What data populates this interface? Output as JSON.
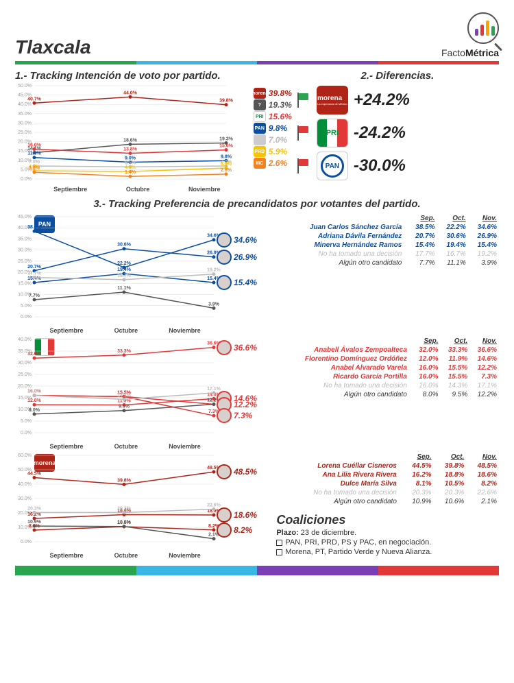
{
  "title": "Tlaxcala",
  "brand": {
    "name_a": "Facto",
    "name_b": "Métrica",
    "bar_colors": [
      "#7b3fb5",
      "#e23838",
      "#f7a500",
      "#2aa44f"
    ]
  },
  "stripe_colors": [
    "#2aa44f",
    "#3bb6e4",
    "#7b3fb5",
    "#e23838"
  ],
  "sec1_title": "1.- Tracking Intención de voto por partido.",
  "sec2_title": "2.- Diferencias.",
  "sec3_title": "3.- Tracking Preferencia de precandidatos por votantes del partido.",
  "months": [
    "Septiembre",
    "Octubre",
    "Noviembre"
  ],
  "chart1": {
    "ymax": 50,
    "ystep": 5,
    "series": [
      {
        "name": "morena",
        "color": "#b02418",
        "vals": [
          40.7,
          44.0,
          39.8
        ],
        "badge_bg": "#b02418",
        "badge_txt": "morena",
        "end": "39.8%"
      },
      {
        "name": "unknown",
        "color": "#555",
        "vals": [
          14.1,
          18.6,
          19.3
        ],
        "badge_bg": "#555",
        "badge_txt": "?",
        "end": "19.3%"
      },
      {
        "name": "pri",
        "color": "#e23838",
        "vals": [
          16.0,
          13.8,
          15.6
        ],
        "badge_bg": "#fff",
        "badge_txt": "PRI",
        "end": "15.6%",
        "tri": true
      },
      {
        "name": "pan",
        "color": "#0a4ea2",
        "vals": [
          11.5,
          9.0,
          9.8
        ],
        "badge_bg": "#0a4ea2",
        "badge_txt": "PAN",
        "end": "9.8%"
      },
      {
        "name": "indep",
        "color": "#bbb",
        "vals": [
          7.0,
          6.5,
          7.0
        ],
        "badge_bg": "#ccc",
        "badge_txt": "",
        "end": "7.0%"
      },
      {
        "name": "prd",
        "color": "#f7c500",
        "vals": [
          4.4,
          4.0,
          5.9
        ],
        "badge_bg": "#f7c500",
        "badge_txt": "PRD",
        "end": "5.9%"
      },
      {
        "name": "mc",
        "color": "#f58220",
        "vals": [
          3.6,
          1.4,
          2.6
        ],
        "badge_bg": "#f58220",
        "badge_txt": "MC",
        "end": "2.6%"
      }
    ]
  },
  "diffs": [
    {
      "flag": "#2aa44f",
      "badge_bg": "#b02418",
      "badge_label": "morena",
      "badge_sub": "La esperanza de México",
      "val": "+24.2%"
    },
    {
      "flag": "#e23838",
      "badge_bg": "#fff",
      "badge_label": "PRI",
      "tri": true,
      "val": "-24.2%"
    },
    {
      "flag": "#e23838",
      "badge_bg": "#fff",
      "badge_label": "PAN",
      "pan": true,
      "val": "-30.0%"
    }
  ],
  "sec3": [
    {
      "party": "PAN",
      "party_bg": "#0a4ea2",
      "party_color": "#fff",
      "ymax": 45,
      "ystep": 5,
      "line_color": "#0a4ea2",
      "rows": [
        {
          "name": "Juan Carlos Sánchez García",
          "v": [
            38.5,
            22.2,
            34.6
          ],
          "c": "#0a4ea2",
          "bold": true
        },
        {
          "name": "Adriana Dávila Fernández",
          "v": [
            20.7,
            30.6,
            26.9
          ],
          "c": "#0a4ea2",
          "bold": true
        },
        {
          "name": "Minerva Hernández Ramos",
          "v": [
            15.4,
            19.4,
            15.4
          ],
          "c": "#0a4ea2",
          "bold": true
        },
        {
          "name": "No ha tomado una decisión",
          "v": [
            17.7,
            16.7,
            19.2
          ],
          "c": "#bbb",
          "faded": true
        },
        {
          "name": "Algún otro candidato",
          "v": [
            7.7,
            11.1,
            3.9
          ],
          "c": "#555"
        }
      ]
    },
    {
      "party": "PRI",
      "party_bg": "#fff",
      "party_color": "#008000",
      "tri": true,
      "ymax": 40,
      "ystep": 5,
      "line_color": "#e23838",
      "rows": [
        {
          "name": "Anabell Ávalos Zempoalteca",
          "v": [
            32.0,
            33.3,
            36.6
          ],
          "c": "#e23838",
          "bold": true
        },
        {
          "name": "Florentino Domínguez Ordóñez",
          "v": [
            12.0,
            11.9,
            14.6
          ],
          "c": "#e23838",
          "bold": true
        },
        {
          "name": "Anabel Alvarado Varela",
          "v": [
            16.0,
            15.5,
            12.2
          ],
          "c": "#e23838",
          "bold": true
        },
        {
          "name": "Ricardo García Portilla",
          "v": [
            16.0,
            15.5,
            7.3
          ],
          "c": "#e23838",
          "bold": true
        },
        {
          "name": "No ha tomado una decisión",
          "v": [
            16.0,
            14.3,
            17.1
          ],
          "c": "#bbb",
          "faded": true
        },
        {
          "name": "Algún otro candidato",
          "v": [
            8.0,
            9.5,
            12.2
          ],
          "c": "#555"
        }
      ]
    },
    {
      "party": "morena",
      "party_bg": "#b02418",
      "party_color": "#fff",
      "ymax": 60,
      "ystep": 10,
      "line_color": "#b02418",
      "rows": [
        {
          "name": "Lorena Cuéllar Cisneros",
          "v": [
            44.5,
            39.8,
            48.5
          ],
          "c": "#b02418",
          "bold": true
        },
        {
          "name": "Ana Lilia Rivera Rivera",
          "v": [
            16.2,
            18.8,
            18.6
          ],
          "c": "#b02418",
          "bold": true
        },
        {
          "name": "Dulce María Silva",
          "v": [
            8.1,
            10.5,
            8.2
          ],
          "c": "#b02418",
          "bold": true
        },
        {
          "name": "No ha tomado una decisión",
          "v": [
            20.3,
            20.3,
            22.6
          ],
          "c": "#bbb",
          "faded": true
        },
        {
          "name": "Algún otro candidato",
          "v": [
            10.9,
            10.6,
            2.1
          ],
          "c": "#555"
        }
      ],
      "coalitions": {
        "title": "Coaliciones",
        "deadline_label": "Plazo:",
        "deadline": "23 de diciembre.",
        "items": [
          "PAN, PRI, PRD, PS y PAC, en negociación.",
          "Morena, PT, Partido Verde y Nueva Alianza."
        ]
      }
    }
  ],
  "table_headers": [
    "Sep.",
    "Oct.",
    "Nov."
  ]
}
